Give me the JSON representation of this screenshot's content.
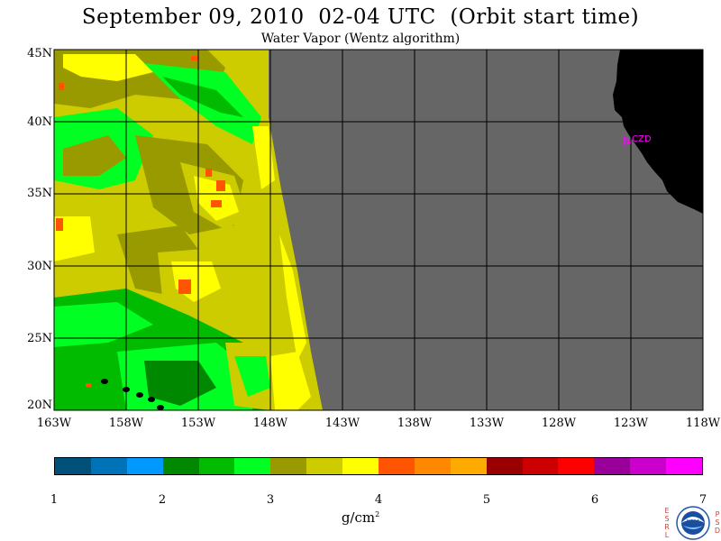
{
  "title": "September 09, 2010  02-04 UTC  (Orbit start time)",
  "subtitle": "Water Vapor (Wentz algorithm)",
  "map": {
    "lat_labels": [
      "45N",
      "40N",
      "35N",
      "30N",
      "25N",
      "20N"
    ],
    "lon_labels": [
      "163W",
      "158W",
      "153W",
      "148W",
      "143W",
      "138W",
      "133W",
      "128W",
      "123W",
      "118W"
    ],
    "station_label": "CZD",
    "colors": {
      "nodata": "#666666",
      "land": "#000000",
      "grid": "#000000",
      "station": "#ff00ff"
    }
  },
  "colorbar": {
    "tick_labels": [
      "1",
      "2",
      "3",
      "4",
      "5",
      "6",
      "7"
    ],
    "units_base": "g/cm",
    "units_exp": "2",
    "colors": [
      "#00507a",
      "#0073b8",
      "#0099ff",
      "#008800",
      "#00bb00",
      "#00ff22",
      "#999900",
      "#cccc00",
      "#ffff00",
      "#ff5500",
      "#ff8800",
      "#ffaa00",
      "#990000",
      "#cc0000",
      "#ff0000",
      "#990099",
      "#cc00cc",
      "#ff00ff"
    ]
  },
  "logo": {
    "left_letters": [
      "E",
      "S",
      "R",
      "L"
    ],
    "right_letters": [
      "P",
      "S",
      "D"
    ],
    "emblem_text": "NOAA"
  }
}
